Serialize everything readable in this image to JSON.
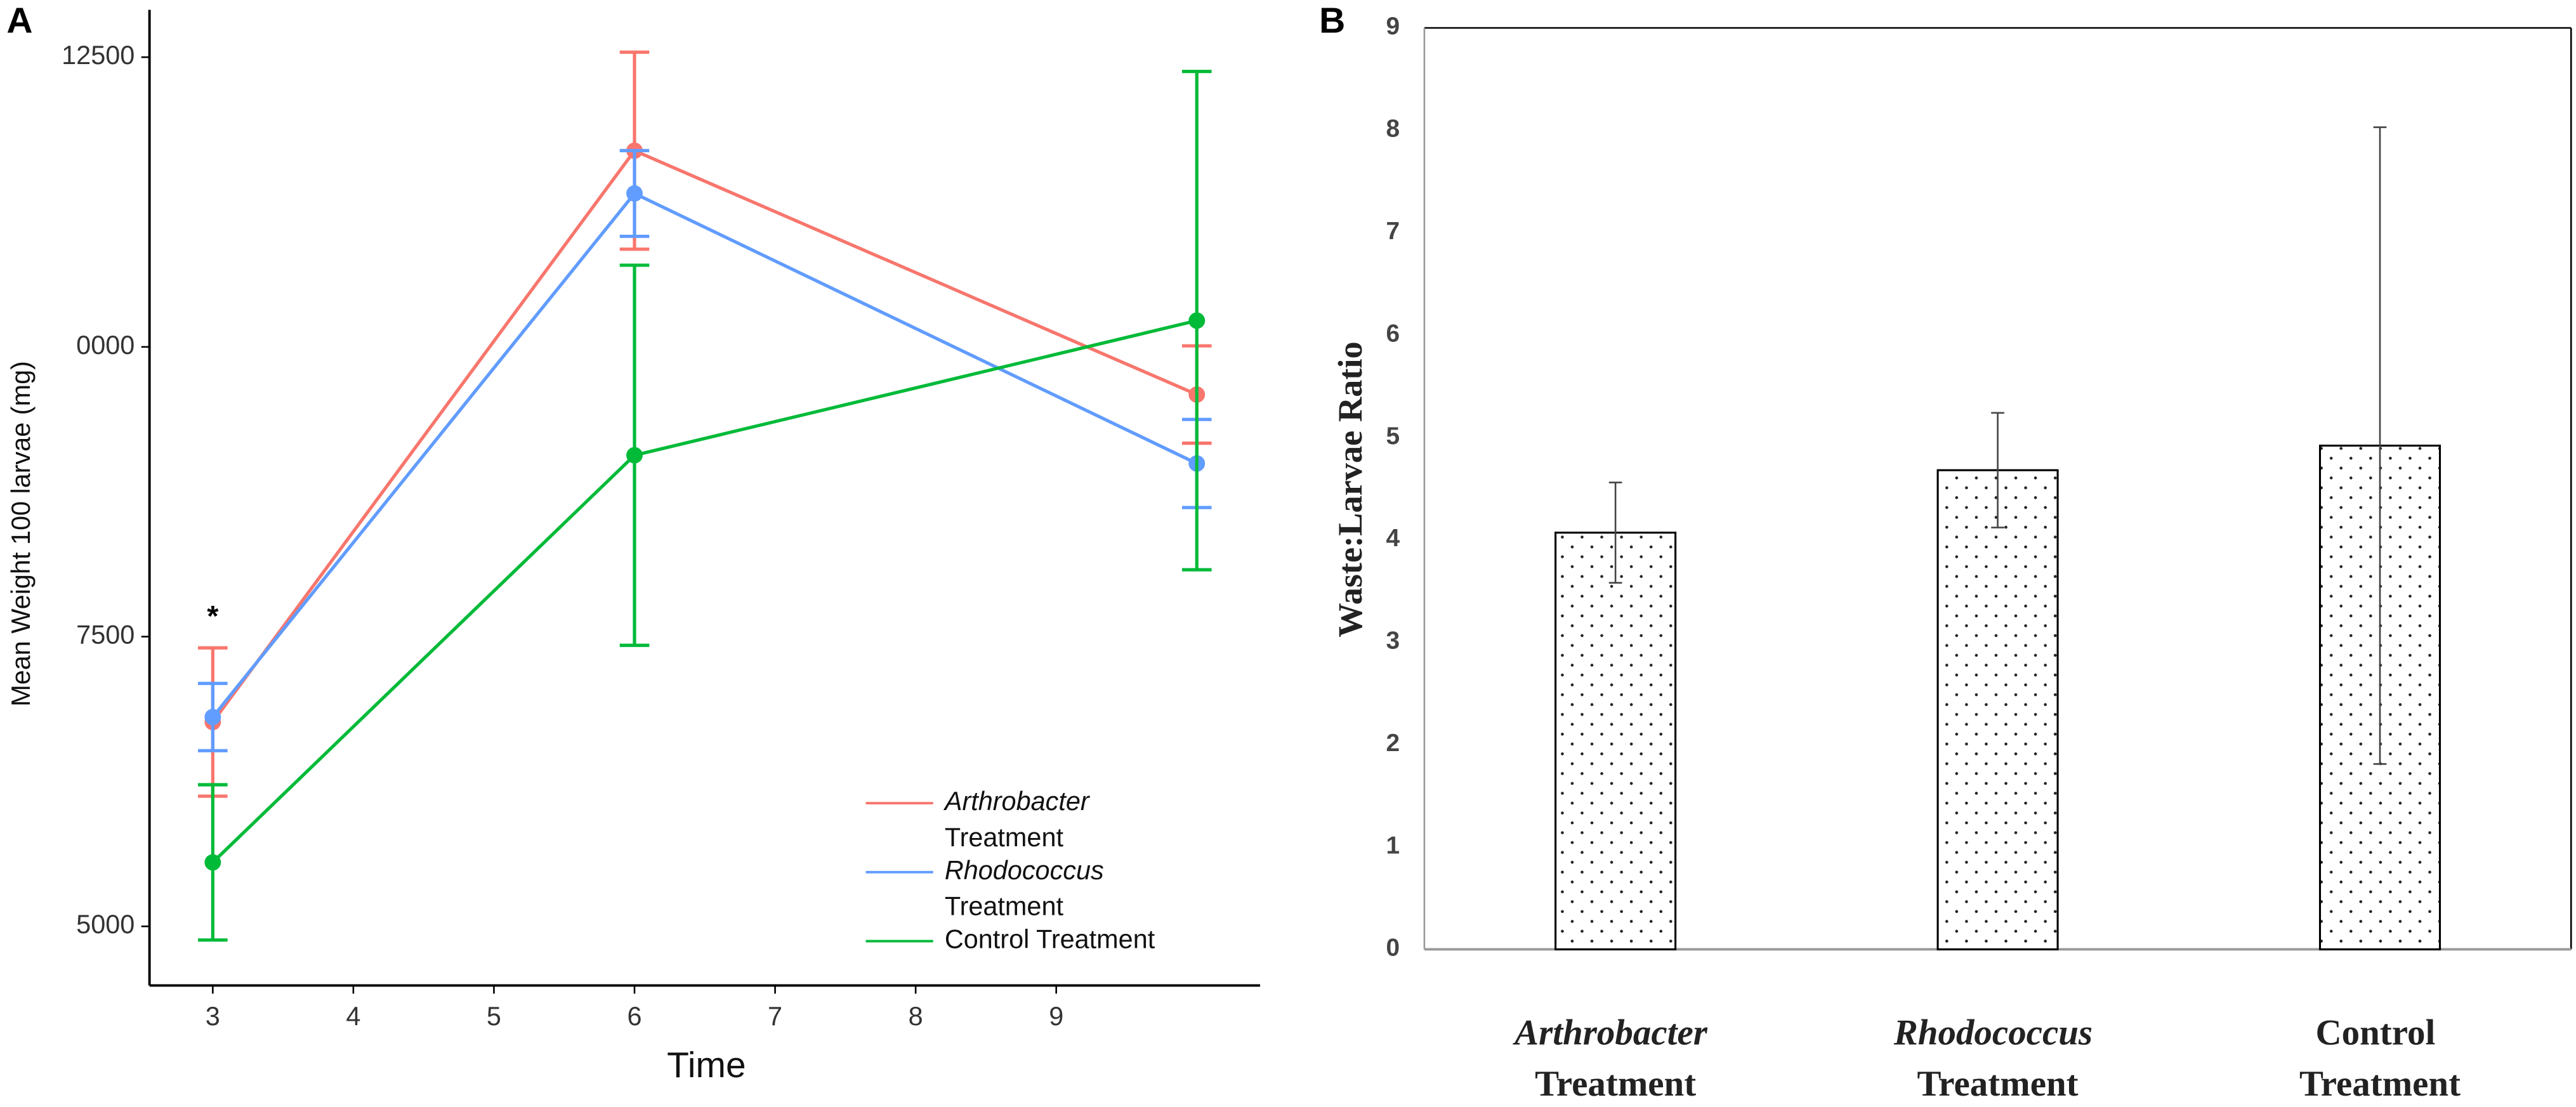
{
  "chart_data": [
    {
      "type": "line",
      "panel": "A",
      "x_label": "Time",
      "y_label": "Mean Weight 100 larvae (mg)",
      "annotation": "*",
      "x": [
        3,
        6,
        10
      ],
      "xlim": [
        2.55,
        10.45
      ],
      "xticks": [
        3,
        4,
        5,
        6,
        7,
        8,
        9
      ],
      "ylim": [
        4490,
        12880
      ],
      "yticks": [
        5000,
        7500,
        {
          "value": 10000,
          "label": "0000"
        },
        12500
      ],
      "series": [
        {
          "name": "Arthrobacter Treatment",
          "italic": true,
          "color": "#F8766D",
          "values": [
            6763,
            11693,
            9589
          ],
          "errors": [
            640,
            850,
            420
          ]
        },
        {
          "name": "Rhodococcus Treatment",
          "italic": true,
          "color": "#619CFF",
          "values": [
            6806,
            11324,
            8994
          ],
          "errors": [
            290,
            370,
            380
          ]
        },
        {
          "name": "Control Treatment",
          "italic": false,
          "color": "#00BA38",
          "values": [
            5552,
            9065,
            10227
          ],
          "errors": [
            670,
            1640,
            2150
          ]
        }
      ],
      "legend": "bottom-right"
    },
    {
      "type": "bar",
      "panel": "B",
      "y_label": "Waste:Larvae Ratio",
      "categories": [
        "Arthrobacter Treatment",
        "Rhodococcus Treatment",
        "Control Treatment"
      ],
      "italic": [
        true,
        true,
        false
      ],
      "values": [
        4.07,
        4.68,
        4.92
      ],
      "errors": [
        0.49,
        0.56,
        3.11
      ],
      "ylim": [
        0,
        9
      ],
      "yticks": [
        0,
        1,
        2,
        3,
        4,
        5,
        6,
        7,
        8,
        9
      ]
    }
  ]
}
